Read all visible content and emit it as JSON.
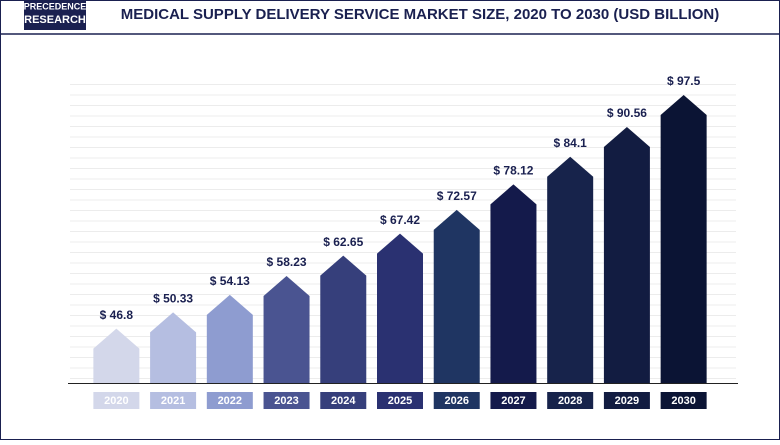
{
  "logo": {
    "line1": "PRECEDENCE",
    "line2": "RESEARCH"
  },
  "chart_data": {
    "type": "bar",
    "title": "MEDICAL SUPPLY DELIVERY SERVICE MARKET SIZE, 2020 TO 2030 (USD BILLION)",
    "categories": [
      "2020",
      "2021",
      "2022",
      "2023",
      "2024",
      "2025",
      "2026",
      "2027",
      "2028",
      "2029",
      "2030"
    ],
    "values": [
      46.8,
      50.33,
      54.13,
      58.23,
      62.65,
      67.42,
      72.57,
      78.12,
      84.1,
      90.56,
      97.5
    ],
    "value_labels": [
      "$ 46.8",
      "$ 50.33",
      "$ 54.13",
      "$ 58.23",
      "$ 62.65",
      "$ 67.42",
      "$ 72.57",
      "$ 78.12",
      "$ 84.1",
      "$ 90.56",
      "$ 97.5"
    ],
    "colors": [
      "#d3d7ea",
      "#b5bee1",
      "#8e9cd0",
      "#4a5491",
      "#363f7b",
      "#2a3171",
      "#1f3562",
      "#141a4b",
      "#17234b",
      "#121c41",
      "#0b1434"
    ],
    "ylim": [
      35,
      100
    ]
  }
}
